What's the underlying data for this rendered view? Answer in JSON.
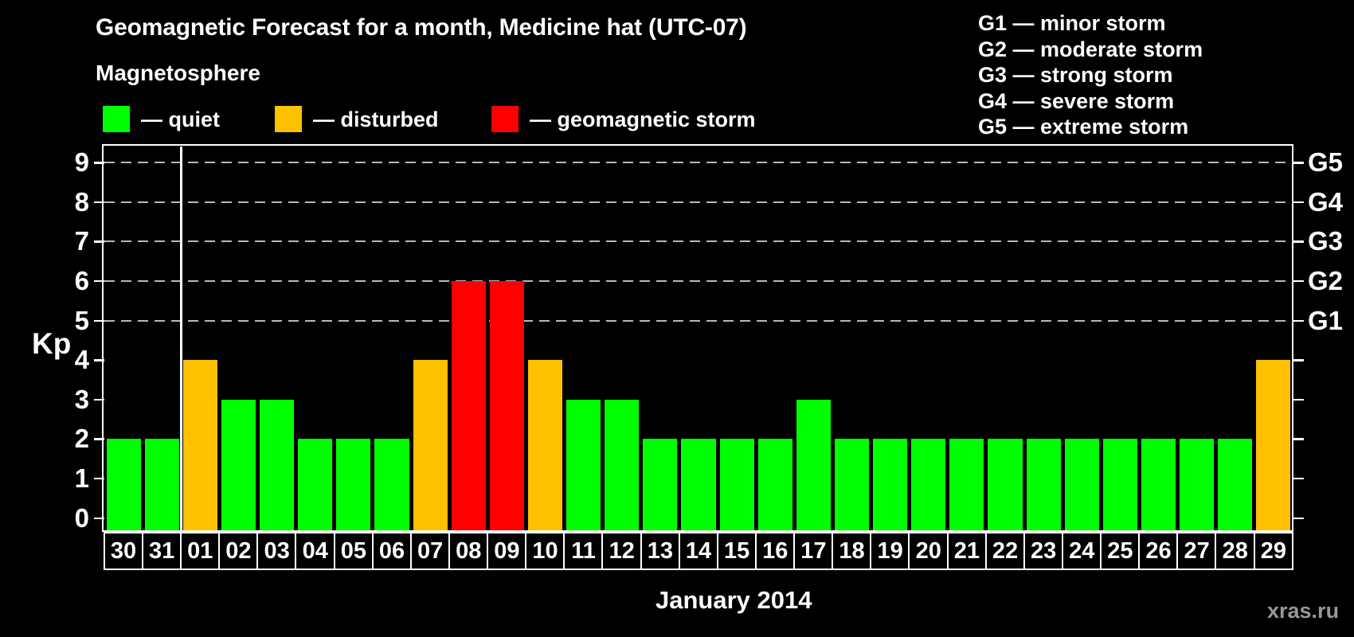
{
  "header": {
    "title": "Geomagnetic Forecast for a month, Medicine hat (UTC-07)",
    "subtitle": "Magnetosphere"
  },
  "legend": {
    "items": [
      {
        "name": "quiet",
        "label": "— quiet",
        "color": "#00ff00"
      },
      {
        "name": "disturbed",
        "label": "— disturbed",
        "color": "#ffc000"
      },
      {
        "name": "storm",
        "label": "— geomagnetic storm",
        "color": "#ff0000"
      }
    ]
  },
  "storm_scale_legend": {
    "lines": [
      "G1 — minor storm",
      "G2 — moderate storm",
      "G3 — strong storm",
      "G4 — severe storm",
      "G5 — extreme storm"
    ]
  },
  "chart_data": {
    "type": "bar",
    "title": "Geomagnetic Forecast for a month, Medicine hat (UTC-07)",
    "ylabel": "Kp",
    "xlabel": "January 2014",
    "ylim": [
      0,
      9
    ],
    "y_ticks": [
      "0",
      "1",
      "2",
      "3",
      "4",
      "5",
      "6",
      "7",
      "8",
      "9"
    ],
    "dashed_gridlines_at_kp": [
      5,
      6,
      7,
      8,
      9
    ],
    "right_axis_labels": [
      {
        "text": "G1",
        "kp": 5
      },
      {
        "text": "G2",
        "kp": 6
      },
      {
        "text": "G3",
        "kp": 7
      },
      {
        "text": "G4",
        "kp": 8
      },
      {
        "text": "G5",
        "kp": 9
      }
    ],
    "categories": [
      "30",
      "31",
      "01",
      "02",
      "03",
      "04",
      "05",
      "06",
      "07",
      "08",
      "09",
      "10",
      "11",
      "12",
      "13",
      "14",
      "15",
      "16",
      "17",
      "18",
      "19",
      "20",
      "21",
      "22",
      "23",
      "24",
      "25",
      "26",
      "27",
      "28",
      "29"
    ],
    "values": [
      2,
      2,
      4,
      3,
      3,
      2,
      2,
      2,
      4,
      6,
      6,
      4,
      3,
      3,
      2,
      2,
      2,
      2,
      3,
      2,
      2,
      2,
      2,
      2,
      2,
      2,
      2,
      2,
      2,
      2,
      4
    ],
    "statuses": [
      "quiet",
      "quiet",
      "disturbed",
      "quiet",
      "quiet",
      "quiet",
      "quiet",
      "quiet",
      "disturbed",
      "storm",
      "storm",
      "disturbed",
      "quiet",
      "quiet",
      "quiet",
      "quiet",
      "quiet",
      "quiet",
      "quiet",
      "quiet",
      "quiet",
      "quiet",
      "quiet",
      "quiet",
      "quiet",
      "quiet",
      "quiet",
      "quiet",
      "quiet",
      "quiet",
      "disturbed"
    ],
    "month_separator_after_category": "31",
    "status_colors": {
      "quiet": "#00ff00",
      "disturbed": "#ffc000",
      "storm": "#ff0000"
    },
    "legend_position": "top",
    "grid": "dashed horizontal at Kp 5-9 only"
  },
  "footer": {
    "month_label": "January 2014",
    "watermark": "xras.ru"
  }
}
